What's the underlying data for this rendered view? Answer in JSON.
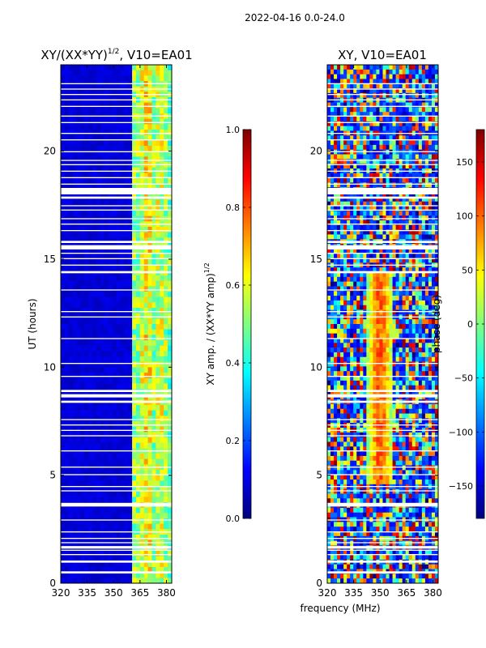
{
  "suptitle": "2022-04-16 0.0-24.0",
  "xlabel": "frequency (MHz)",
  "colors": {
    "nan_gap": "#ffffff",
    "jet_stops": [
      "#00007f",
      "#0000ff",
      "#007fff",
      "#00ffff",
      "#7fff7f",
      "#ffff00",
      "#ff7f00",
      "#ff0000",
      "#7f0000"
    ]
  },
  "chart_data": [
    {
      "type": "heatmap",
      "title": "XY/(XX*YY)",
      "title_sup": "1/2",
      "title_suffix": ", V10=EA01",
      "xlabel": "frequency (MHz)",
      "ylabel": "UT (hours)",
      "xlim": [
        320,
        383
      ],
      "ylim": [
        0,
        24
      ],
      "xticks": [
        320,
        335,
        350,
        365,
        380
      ],
      "yticks": [
        0,
        5,
        10,
        15,
        20
      ],
      "colorbar": {
        "label": "XY amp. / (XX*YY amp)",
        "label_sup": "1/2",
        "range": [
          0.0,
          1.0
        ],
        "ticks": [
          "0.0",
          "0.2",
          "0.4",
          "0.6",
          "0.8",
          "1.0"
        ],
        "tick_values": [
          0.0,
          0.2,
          0.4,
          0.6,
          0.8,
          1.0
        ]
      },
      "description_bands_MHz": [
        {
          "from": 320,
          "to": 362,
          "level": 0.05
        },
        {
          "from": 362,
          "to": 383,
          "level": 0.45
        }
      ]
    },
    {
      "type": "heatmap",
      "title": "XY, V10=EA01",
      "xlabel": "frequency (MHz)",
      "ylabel": "",
      "xlim": [
        320,
        383
      ],
      "ylim": [
        0,
        24
      ],
      "xticks": [
        320,
        335,
        350,
        365,
        380
      ],
      "yticks": [
        0,
        5,
        10,
        15,
        20
      ],
      "colorbar": {
        "label": "phase (deg)",
        "range": [
          -180,
          180
        ],
        "ticks": [
          "−150",
          "−100",
          "−50",
          "0",
          "50",
          "100",
          "150"
        ],
        "tick_values": [
          -150,
          -100,
          -50,
          0,
          50,
          100,
          150
        ]
      }
    }
  ],
  "gaps_hours": [
    [
      0.45,
      0.55
    ],
    [
      0.95,
      1.05
    ],
    [
      1.3,
      1.35
    ],
    [
      1.5,
      1.55
    ],
    [
      1.6,
      1.72
    ],
    [
      1.85,
      1.9
    ],
    [
      2.05,
      2.1
    ],
    [
      2.35,
      2.4
    ],
    [
      2.9,
      2.95
    ],
    [
      3.55,
      3.72
    ],
    [
      4.25,
      4.3
    ],
    [
      4.45,
      4.5
    ],
    [
      5.0,
      5.05
    ],
    [
      5.35,
      5.4
    ],
    [
      6.1,
      6.15
    ],
    [
      6.8,
      6.85
    ],
    [
      7.05,
      7.1
    ],
    [
      7.3,
      7.35
    ],
    [
      7.55,
      7.6
    ],
    [
      8.35,
      8.45
    ],
    [
      8.6,
      8.75
    ],
    [
      8.85,
      8.95
    ],
    [
      9.55,
      9.6
    ],
    [
      10.15,
      10.2
    ],
    [
      11.3,
      11.35
    ],
    [
      12.3,
      12.35
    ],
    [
      12.55,
      12.6
    ],
    [
      13.55,
      13.6
    ],
    [
      14.35,
      14.45
    ],
    [
      14.7,
      14.75
    ],
    [
      15.0,
      15.05
    ],
    [
      15.25,
      15.3
    ],
    [
      15.45,
      15.65
    ],
    [
      15.75,
      15.85
    ],
    [
      16.3,
      16.35
    ],
    [
      16.6,
      16.65
    ],
    [
      16.85,
      16.9
    ],
    [
      17.25,
      17.3
    ],
    [
      17.45,
      17.5
    ],
    [
      17.8,
      17.9
    ],
    [
      18.0,
      18.3
    ],
    [
      18.45,
      18.5
    ],
    [
      18.75,
      18.8
    ],
    [
      19.05,
      19.1
    ],
    [
      19.35,
      19.4
    ],
    [
      19.55,
      19.6
    ],
    [
      19.95,
      20.0
    ],
    [
      20.5,
      20.55
    ],
    [
      20.8,
      20.85
    ],
    [
      21.3,
      21.35
    ],
    [
      21.6,
      21.65
    ],
    [
      22.05,
      22.1
    ],
    [
      22.35,
      22.4
    ],
    [
      22.6,
      22.65
    ],
    [
      22.85,
      22.9
    ],
    [
      23.1,
      23.15
    ]
  ]
}
